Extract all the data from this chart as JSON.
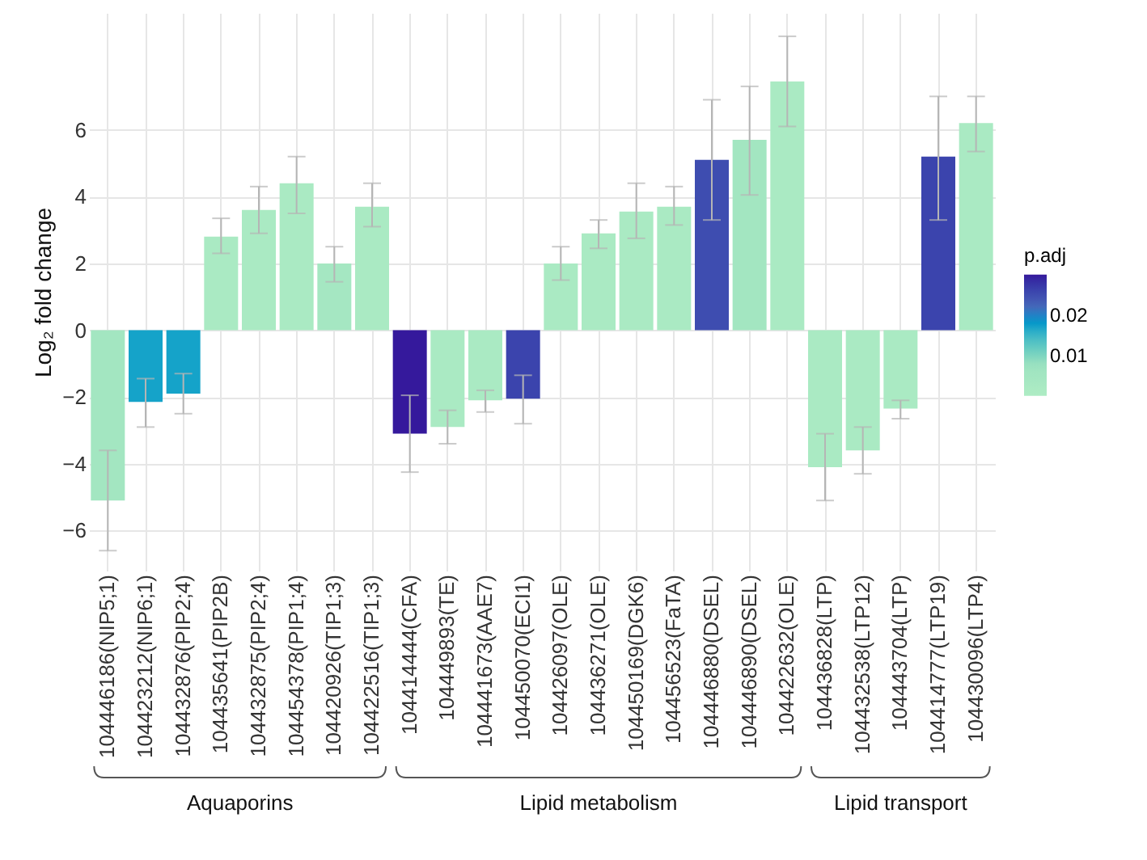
{
  "chart_data": {
    "type": "bar",
    "ylabel": "Log₂ fold change",
    "clabel": "p.adj",
    "categories": [
      "104446186(NIP5;1)",
      "104423212(NIP6;1)",
      "104432876(PIP2;4)",
      "104435641(PIP2B)",
      "104432875(PIP2;4)",
      "104454378(PIP1;4)",
      "104420926(TIP1;3)",
      "104422516(TIP1;3)",
      "104414444(CFA)",
      "104449893(TE)",
      "104441673(AAE7)",
      "104450070(ECI1)",
      "104426097(OLE)",
      "104436271(OLE)",
      "104450169(DGK6)",
      "104456523(FaTA)",
      "104446880(DSEL)",
      "104446890(DSEL)",
      "104422632(OLE)",
      "104436828(LTP)",
      "104432538(LTP12)",
      "104443704(LTP)",
      "104414777(LTP19)",
      "104430096(LTP4)"
    ],
    "values": [
      -5.1,
      -2.15,
      -1.9,
      2.8,
      3.6,
      4.4,
      2.0,
      3.7,
      -3.1,
      -2.9,
      -2.1,
      -2.05,
      2.0,
      2.9,
      3.55,
      3.7,
      5.1,
      5.7,
      7.45,
      -4.1,
      -3.6,
      -2.35,
      5.2,
      6.2
    ],
    "errors": [
      [
        -6.6,
        -3.6
      ],
      [
        -2.9,
        -1.45
      ],
      [
        -2.5,
        -1.3
      ],
      [
        2.3,
        3.35
      ],
      [
        2.9,
        4.3
      ],
      [
        3.5,
        5.2
      ],
      [
        1.45,
        2.5
      ],
      [
        3.1,
        4.4
      ],
      [
        -4.25,
        -1.95
      ],
      [
        -3.4,
        -2.4
      ],
      [
        -2.45,
        -1.8
      ],
      [
        -2.8,
        -1.35
      ],
      [
        1.5,
        2.5
      ],
      [
        2.45,
        3.3
      ],
      [
        2.75,
        4.4
      ],
      [
        3.15,
        4.3
      ],
      [
        3.3,
        6.9
      ],
      [
        4.05,
        7.3
      ],
      [
        6.1,
        8.8
      ],
      [
        -5.1,
        -3.1
      ],
      [
        -4.3,
        -2.9
      ],
      [
        -2.65,
        -2.1
      ],
      [
        3.3,
        7.0
      ],
      [
        5.35,
        7.0
      ]
    ],
    "cvalues": [
      0.005,
      0.017,
      0.017,
      0.002,
      0.002,
      0.002,
      0.004,
      0.002,
      0.03,
      0.002,
      0.002,
      0.026,
      0.002,
      0.002,
      0.002,
      0.002,
      0.025,
      0.005,
      0.002,
      0.002,
      0.002,
      0.002,
      0.026,
      0.002
    ],
    "clim": [
      0,
      0.03
    ],
    "cticks": [
      0.01,
      0.02
    ],
    "ylim": [
      -7.2,
      9.5
    ],
    "yticks": [
      -6,
      -4,
      -2,
      0,
      2,
      4,
      6
    ],
    "grid": true,
    "annotations": [
      "Aquaporins",
      "Lipid metabolism",
      "Lipid transport"
    ]
  }
}
